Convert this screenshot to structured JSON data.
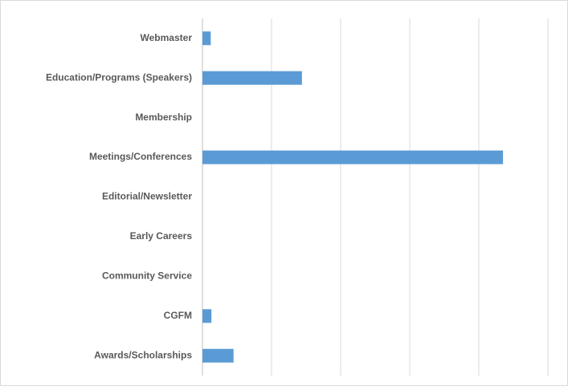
{
  "chart_data": {
    "type": "bar",
    "orientation": "horizontal",
    "categories": [
      "Webmaster",
      "Education/Programs (Speakers)",
      "Membership",
      "Meetings/Conferences",
      "Editorial/Newsletter",
      "Early Careers",
      "Community Service",
      "CGFM",
      "Awards/Scholarships"
    ],
    "values": [
      0.12,
      1.44,
      0,
      4.35,
      0,
      0,
      0,
      0.13,
      0.45
    ],
    "color": "#5b9bd5",
    "xlim": [
      0,
      5
    ],
    "xticks": [
      0,
      1,
      2,
      3,
      4,
      5
    ],
    "xtick_labels": false,
    "grid": true
  }
}
